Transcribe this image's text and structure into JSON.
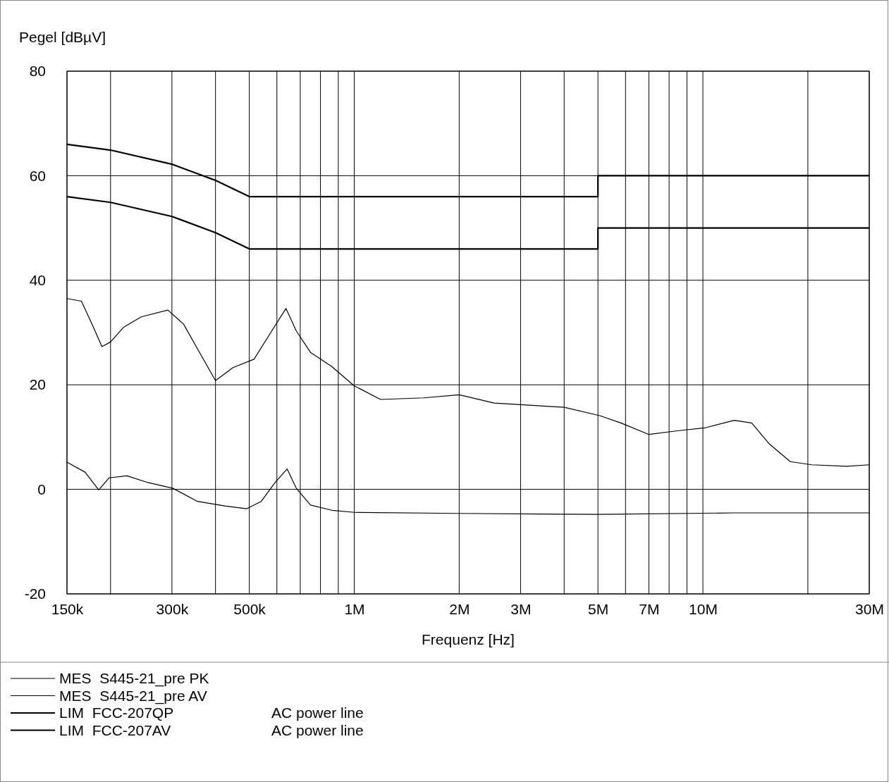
{
  "chart_data": {
    "type": "line",
    "xlabel": "Frequenz [Hz]",
    "ylabel": "Pegel [dBµV]",
    "log": "x",
    "grid": true,
    "legend": "bottom left",
    "line_style": "solid",
    "marker": "none",
    "xlim": [
      150000,
      30000000
    ],
    "xticks": [
      {
        "value": 150000,
        "label": "150k"
      },
      {
        "value": 200000,
        "label": null
      },
      {
        "value": 300000,
        "label": "300k"
      },
      {
        "value": 400000,
        "label": null
      },
      {
        "value": 500000,
        "label": "500k"
      },
      {
        "value": 600000,
        "label": null
      },
      {
        "value": 700000,
        "label": null
      },
      {
        "value": 800000,
        "label": null
      },
      {
        "value": 900000,
        "label": null
      },
      {
        "value": 1000000,
        "label": "1M"
      },
      {
        "value": 2000000,
        "label": "2M"
      },
      {
        "value": 3000000,
        "label": "3M"
      },
      {
        "value": 4000000,
        "label": null
      },
      {
        "value": 5000000,
        "label": "5M"
      },
      {
        "value": 6000000,
        "label": null
      },
      {
        "value": 7000000,
        "label": "7M"
      },
      {
        "value": 8000000,
        "label": null
      },
      {
        "value": 9000000,
        "label": null
      },
      {
        "value": 10000000,
        "label": "10M"
      },
      {
        "value": 20000000,
        "label": null
      },
      {
        "value": 30000000,
        "label": "30M"
      }
    ],
    "ylim": [
      -20,
      80
    ],
    "yticks": [
      -20,
      0,
      20,
      40,
      60,
      80
    ],
    "annotations": [
      "AC power line",
      "AC power line"
    ],
    "series": [
      {
        "name": "MES  S445-21_pre PK",
        "color": "#000000",
        "x": [
          150000,
          165000,
          177000,
          189000,
          200000,
          218000,
          245000,
          292000,
          324000,
          355000,
          400000,
          449000,
          516000,
          580000,
          637000,
          682000,
          749000,
          862000,
          1000000,
          1190000,
          1580000,
          2000000,
          2520000,
          3180000,
          4000000,
          5060000,
          5820000,
          7000000,
          8450000,
          10200000,
          12300000,
          13800000,
          15500000,
          17800000,
          20500000,
          25900000,
          30000000
        ],
        "values": [
          36.5,
          36,
          31.6,
          27.3,
          28.2,
          31,
          33,
          34.3,
          31.6,
          26.9,
          20.8,
          23.3,
          24.9,
          30.3,
          34.6,
          30.3,
          26.2,
          23.5,
          19.8,
          17.2,
          17.5,
          18.1,
          16.5,
          16.1,
          15.7,
          14.1,
          12.7,
          10.5,
          11.2,
          11.8,
          13.2,
          12.7,
          8.7,
          5.3,
          4.7,
          4.4,
          4.7
        ]
      },
      {
        "name": "MES  S445-21_pre AV",
        "color": "#000000",
        "x": [
          150000,
          169000,
          185000,
          198000,
          223000,
          256000,
          302000,
          355000,
          428000,
          492000,
          541000,
          593000,
          642000,
          682000,
          749000,
          862000,
          1000000,
          2000000,
          5060000,
          12300000,
          30000000
        ],
        "values": [
          5.2,
          3.3,
          -0.1,
          2.2,
          2.6,
          1.3,
          0.2,
          -2.3,
          -3.2,
          -3.7,
          -2.3,
          1.3,
          3.9,
          0.2,
          -3,
          -4,
          -4.4,
          -4.6,
          -4.8,
          -4.5,
          -4.5
        ]
      },
      {
        "name": "LIM  FCC-207QP",
        "color": "#000000",
        "x": [
          150000,
          200000,
          300000,
          400000,
          500000,
          5000000,
          5000000,
          30000000
        ],
        "values": [
          66,
          64.9,
          62.2,
          59.1,
          56,
          56,
          60,
          60
        ]
      },
      {
        "name": "LIM  FCC-207AV",
        "color": "#000000",
        "x": [
          150000,
          200000,
          300000,
          400000,
          500000,
          5000000,
          5000000,
          30000000
        ],
        "values": [
          56,
          54.9,
          52.2,
          49.1,
          46,
          46,
          50,
          50
        ]
      }
    ]
  }
}
